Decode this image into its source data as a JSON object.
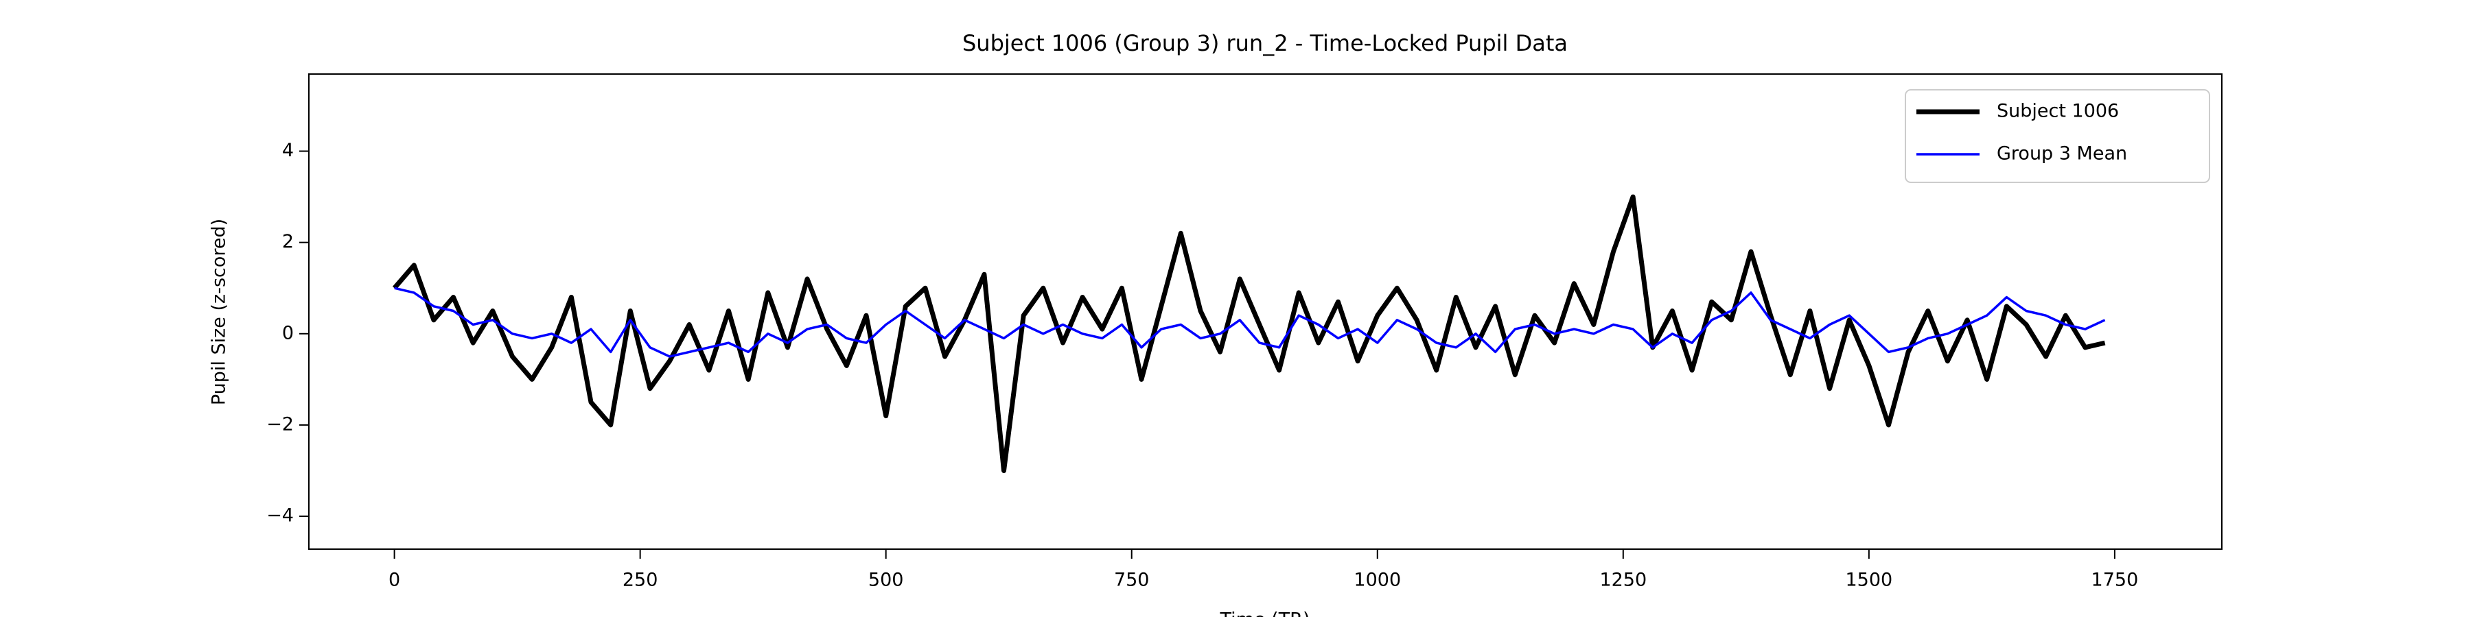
{
  "chart_data": {
    "type": "line",
    "title": "Subject 1006 (Group 3) run_2 - Time-Locked Pupil Data",
    "xlabel": "Time (TR)",
    "ylabel": "Pupil Size (z-scored)",
    "x": [
      0,
      20,
      40,
      60,
      80,
      100,
      120,
      140,
      160,
      180,
      200,
      220,
      240,
      260,
      280,
      300,
      320,
      340,
      360,
      380,
      400,
      420,
      440,
      460,
      480,
      500,
      520,
      540,
      560,
      580,
      600,
      620,
      640,
      660,
      680,
      700,
      720,
      740,
      760,
      780,
      800,
      820,
      840,
      860,
      880,
      900,
      920,
      940,
      960,
      980,
      1000,
      1020,
      1040,
      1060,
      1080,
      1100,
      1120,
      1140,
      1160,
      1180,
      1200,
      1220,
      1240,
      1260,
      1280,
      1300,
      1320,
      1340,
      1360,
      1380,
      1400,
      1420,
      1440,
      1460,
      1480,
      1500,
      1520,
      1540,
      1560,
      1580,
      1600,
      1620,
      1640,
      1660,
      1680,
      1700,
      1720,
      1740
    ],
    "series": [
      {
        "name": "Subject 1006",
        "color": "#000000",
        "width": 7,
        "values": [
          1.0,
          1.5,
          0.3,
          0.8,
          -0.2,
          0.5,
          -0.5,
          -1.0,
          -0.3,
          0.8,
          -1.5,
          -2.0,
          0.5,
          -1.2,
          -0.6,
          0.2,
          -0.8,
          0.5,
          -1.0,
          0.9,
          -0.3,
          1.2,
          0.1,
          -0.7,
          0.4,
          -1.8,
          0.6,
          1.0,
          -0.5,
          0.3,
          1.3,
          -3.0,
          0.4,
          1.0,
          -0.2,
          0.8,
          0.1,
          1.0,
          -1.0,
          0.6,
          2.2,
          0.5,
          -0.4,
          1.2,
          0.2,
          -0.8,
          0.9,
          -0.2,
          0.7,
          -0.6,
          0.4,
          1.0,
          0.3,
          -0.8,
          0.8,
          -0.3,
          0.6,
          -0.9,
          0.4,
          -0.2,
          1.1,
          0.2,
          1.8,
          3.0,
          -0.3,
          0.5,
          -0.8,
          0.7,
          0.3,
          1.8,
          0.4,
          -0.9,
          0.5,
          -1.2,
          0.3,
          -0.7,
          -2.0,
          -0.4,
          0.5,
          -0.6,
          0.3,
          -1.0,
          0.6,
          0.2,
          -0.5,
          0.4,
          -0.3,
          -0.2
        ]
      },
      {
        "name": "Group 3 Mean",
        "color": "#0000ff",
        "width": 3.5,
        "values": [
          1.0,
          0.9,
          0.6,
          0.5,
          0.2,
          0.3,
          0.0,
          -0.1,
          0.0,
          -0.2,
          0.1,
          -0.4,
          0.3,
          -0.3,
          -0.5,
          -0.4,
          -0.3,
          -0.2,
          -0.4,
          0.0,
          -0.2,
          0.1,
          0.2,
          -0.1,
          -0.2,
          0.2,
          0.5,
          0.2,
          -0.1,
          0.3,
          0.1,
          -0.1,
          0.2,
          0.0,
          0.2,
          0.0,
          -0.1,
          0.2,
          -0.3,
          0.1,
          0.2,
          -0.1,
          0.0,
          0.3,
          -0.2,
          -0.3,
          0.4,
          0.2,
          -0.1,
          0.1,
          -0.2,
          0.3,
          0.1,
          -0.2,
          -0.3,
          0.0,
          -0.4,
          0.1,
          0.2,
          0.0,
          0.1,
          0.0,
          0.2,
          0.1,
          -0.3,
          0.0,
          -0.2,
          0.3,
          0.5,
          0.9,
          0.3,
          0.1,
          -0.1,
          0.2,
          0.4,
          0.0,
          -0.4,
          -0.3,
          -0.1,
          0.0,
          0.2,
          0.4,
          0.8,
          0.5,
          0.4,
          0.2,
          0.1,
          0.3
        ]
      }
    ],
    "xlim": [
      -87,
      1859
    ],
    "ylim": [
      -4.72,
      5.69
    ],
    "xticks": [
      0,
      250,
      500,
      750,
      1000,
      1250,
      1500,
      1750
    ],
    "yticks": [
      {
        "value": -4,
        "label": "−4"
      },
      {
        "value": -2,
        "label": "−2"
      },
      0,
      2,
      4
    ],
    "grid": false,
    "legend": "upper right"
  }
}
